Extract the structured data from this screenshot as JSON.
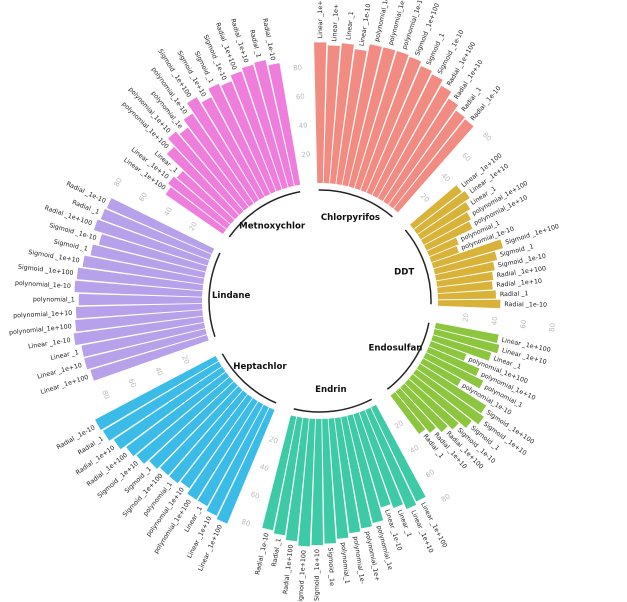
{
  "chart_data": {
    "type": "bar",
    "layout": "circular",
    "title": "",
    "ylim": [
      0,
      100
    ],
    "tick_values": [
      20,
      40,
      60,
      80
    ],
    "groups": [
      {
        "name": "Chlorpyrifos",
        "color": "#f28b82",
        "categories": [
          "Linear _1e+100",
          "Linear _1e+",
          "Linear _1",
          "Linear _1e-10",
          "polynomial_1e",
          "polynomial_1e+",
          "polynomial_1e-10",
          "Sigmoid _1e+100",
          "Sigmoid _1",
          "Sigmoid _1e-10",
          "Radial _1e+100",
          "Radial _1e+10",
          "Radial _1",
          "Radial _1e-10"
        ],
        "values": [
          97,
          95,
          97,
          94,
          99,
          99,
          99,
          98,
          95,
          93,
          89,
          84,
          80,
          79
        ]
      },
      {
        "name": "DDT",
        "color": "#d9b23a",
        "categories": [
          "Linear _1e+100",
          "Linear _1e+10",
          "Linear _1",
          "polynomial_1e+100",
          "polynomial_1e+10",
          "polynomial_1",
          "polynomial_1e-10",
          "Sigmoid _1e+100",
          "Sigmoid _1",
          "Sigmoid _1e-10",
          "Radial _1e+100",
          "Radial _1e+10",
          "Radial _1",
          "Radial _1e-10"
        ],
        "values": [
          42,
          44,
          40,
          37,
          35,
          22,
          20,
          50,
          44,
          41,
          39,
          38,
          40,
          43
        ]
      },
      {
        "name": "Endosulfan",
        "color": "#8cc63f",
        "categories": [
          "Linear _1e+100",
          "Linear _1e+10",
          "Linear _1",
          "polynomial_1e+100",
          "polynomial_1e+10",
          "polynomial_1",
          "polynomial_1e-10",
          "Sigmoid _1e+100",
          "Sigmoid _1e+10",
          "Sigmoid _1",
          "Sigmoid _1e-10",
          "Radial _1e+100",
          "Radial _1e+10",
          "Radial _1"
        ],
        "values": [
          44,
          46,
          42,
          26,
          38,
          44,
          30,
          54,
          57,
          52,
          46,
          42,
          37,
          33
        ]
      },
      {
        "name": "Endrin",
        "color": "#3ec9a7",
        "categories": [
          "Linear _1e+100",
          "Linear _1e+10",
          "Linear _1",
          "Linear _1e-10",
          "polynomial_1e",
          "polynomial_1e+",
          "polynomial_1e-",
          "polynomial_1",
          "Sigmoid _1e",
          "Sigmoid _1e+10",
          "Sigmoid _1e+100",
          "Radial _1e+100",
          "Radial _1",
          "Radial _1e-10"
        ],
        "values": [
          72,
          74,
          70,
          67,
          76,
          78,
          80,
          83,
          86,
          87,
          88,
          85,
          82,
          80
        ]
      },
      {
        "name": "Heptachlor",
        "color": "#3bbce8",
        "categories": [
          "Linear _1e+100",
          "Linear _1e+10",
          "Linear _1",
          "polynomial_1e+100",
          "polynomial_1e+10",
          "polynomial_1",
          "Sigmoid _1e+100",
          "Sigmoid _1",
          "Sigmoid _1e+10",
          "Radial _1e+100",
          "Radial _1e+10",
          "Radial _1",
          "Radial _1e-10"
        ],
        "values": [
          85,
          83,
          80,
          80,
          76,
          78,
          78,
          80,
          84,
          86,
          90,
          93,
          94
        ]
      },
      {
        "name": "Lindane",
        "color": "#b7a1ea",
        "categories": [
          "Linear _1e+100",
          "Linear _1e+10",
          "Linear _1",
          "Linear _1e-10",
          "polynomial_1e+100",
          "polynomial_1e+10",
          "polynomial_1",
          "polynomial_1e-10",
          "Sigmoid _1e+100",
          "Sigmoid _1e+10",
          "Sigmoid _1",
          "Sigmoid _1e-10",
          "Radial _1e+100",
          "Radial _1",
          "Radial _1e-10"
        ],
        "values": [
          84,
          86,
          86,
          90,
          88,
          87,
          85,
          88,
          87,
          84,
          80,
          76,
          82,
          80,
          79
        ]
      },
      {
        "name": "Metnoxychlor",
        "color": "#ee7ddc",
        "categories": [
          "Linear _1e+100",
          "Linear _1e+10",
          "Linear _1",
          "polynomial_1e+100",
          "polynomial_1e+10",
          "polynomial_1e",
          "polynomial_1e-10",
          "Sigmoid _1e+100",
          "Sigmoid _1e+10",
          "Sigmoid _1",
          "Sigmoid _1e-10",
          "Radial _1e+100",
          "Radial _1e+10",
          "Radial _1",
          "Radial _1e-10"
        ],
        "values": [
          48,
          51,
          49,
          65,
          72,
          69,
          75,
          83,
          78,
          84,
          82,
          86,
          88,
          89,
          85
        ]
      }
    ]
  }
}
